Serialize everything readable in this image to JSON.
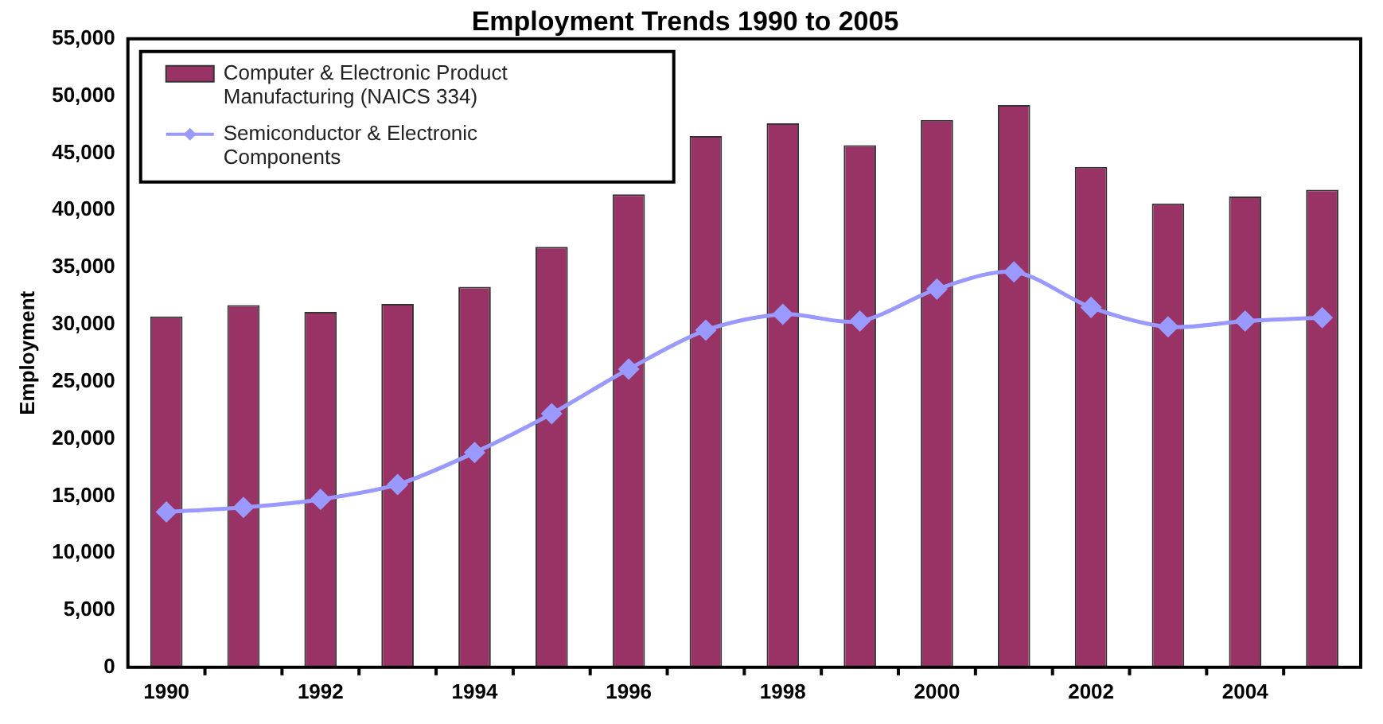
{
  "chart_data": {
    "type": "bar",
    "title": "Employment Trends 1990 to 2005",
    "ylabel": "Employment",
    "categories": [
      "1990",
      null,
      "1992",
      null,
      "1994",
      null,
      "1996",
      null,
      "1998",
      null,
      "2000",
      null,
      "2002",
      null,
      "2004",
      null
    ],
    "series": [
      {
        "name": "Computer & Electronic Product Manufacturing (NAICS 334)",
        "color": "#993366",
        "values": [
          30700,
          31700,
          31100,
          31800,
          33300,
          36800,
          41400,
          46500,
          47600,
          45700,
          47900,
          49200,
          43800,
          40600,
          41200,
          41800
        ]
      },
      {
        "name": "Semiconductor & Electronic Components",
        "type": "line",
        "color": "#9999ff",
        "marker": "diamond",
        "values": [
          13600,
          14000,
          14700,
          16000,
          18800,
          22200,
          26100,
          29500,
          30900,
          30300,
          33100,
          34600,
          31500,
          29800,
          30300,
          30600
        ]
      }
    ],
    "ylim": [
      0,
      55000
    ],
    "yticks": [
      0,
      {
        "value": 5000,
        "label": "5,000"
      },
      {
        "value": 10000,
        "label": "10,000"
      },
      {
        "value": 15000,
        "label": "15,000"
      },
      {
        "value": 20000,
        "label": "20,000"
      },
      {
        "value": 25000,
        "label": "25,000"
      },
      {
        "value": 30000,
        "label": "30,000"
      },
      {
        "value": 35000,
        "label": "35,000"
      },
      {
        "value": 40000,
        "label": "40,000"
      },
      {
        "value": 45000,
        "label": "45,000"
      },
      {
        "value": 50000,
        "label": "50,000"
      },
      {
        "value": 55000,
        "label": "55,000"
      }
    ],
    "grid": false,
    "legend": "top left"
  }
}
